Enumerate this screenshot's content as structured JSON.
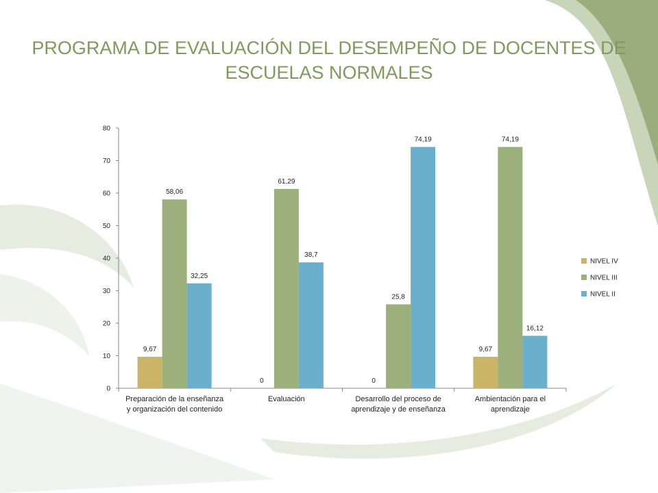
{
  "slide": {
    "title": "PROGRAMA DE EVALUACIÓN DEL DESEMPEÑO DE DOCENTES DE ESCUELAS NORMALES",
    "colors": {
      "title": "#7f9a5a",
      "decor_dark": "#9aad7c",
      "decor_light": "#e6ece0"
    }
  },
  "chart_data": {
    "type": "bar",
    "title": "",
    "xlabel": "",
    "ylabel": "",
    "ylim": [
      0,
      80
    ],
    "yticks": [
      0,
      10,
      20,
      30,
      40,
      50,
      60,
      70,
      80
    ],
    "grid": false,
    "legend_position": "right",
    "categories": [
      [
        "Preparación de la enseñanza",
        "y organización del contenido"
      ],
      [
        "Evaluación"
      ],
      [
        "Desarrollo del proceso de",
        "aprendizaje y de enseñanza"
      ],
      [
        "Ambientación para el",
        "aprendizaje"
      ]
    ],
    "series": [
      {
        "name": "NIVEL IV",
        "color": "#c9b467",
        "values": [
          9.67,
          0,
          0,
          9.67
        ],
        "labels": [
          "9,67",
          "0",
          "0",
          "9,67"
        ]
      },
      {
        "name": "NIVEL III",
        "color": "#9bb07c",
        "values": [
          58.06,
          61.29,
          25.8,
          74.19
        ],
        "labels": [
          "58,06",
          "61,29",
          "25,8",
          "74,19"
        ]
      },
      {
        "name": "NIVEL II",
        "color": "#6aafcb",
        "values": [
          32.25,
          38.7,
          74.19,
          16.12
        ],
        "labels": [
          "32,25",
          "38,7",
          "74,19",
          "16,12"
        ]
      }
    ]
  }
}
